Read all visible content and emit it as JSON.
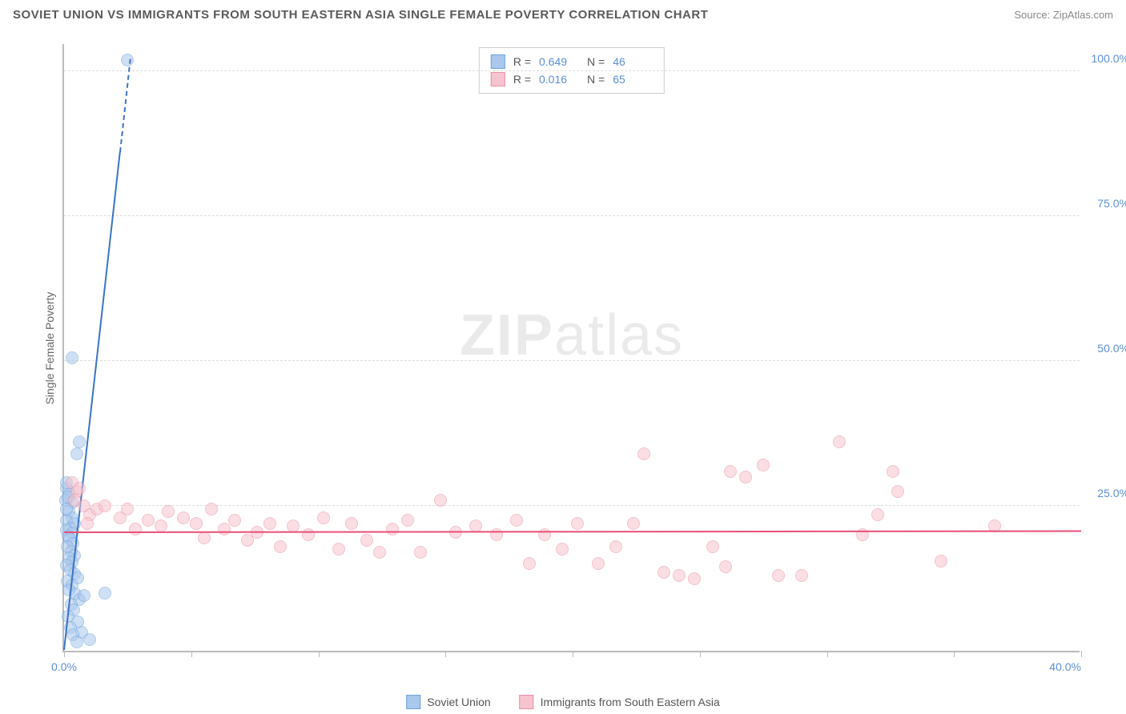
{
  "title": "SOVIET UNION VS IMMIGRANTS FROM SOUTH EASTERN ASIA SINGLE FEMALE POVERTY CORRELATION CHART",
  "source": "Source: ZipAtlas.com",
  "y_axis_label": "Single Female Poverty",
  "watermark_a": "ZIP",
  "watermark_b": "atlas",
  "chart": {
    "type": "scatter",
    "xlim": [
      0,
      40
    ],
    "ylim": [
      0,
      105
    ],
    "x_ticks": [
      0,
      5,
      10,
      15,
      20,
      25,
      30,
      35,
      40
    ],
    "x_tick_labels": {
      "0": "0.0%",
      "40": "40.0%"
    },
    "y_ticks": [
      25,
      50,
      75,
      100
    ],
    "y_tick_labels": {
      "25": "25.0%",
      "50": "50.0%",
      "75": "75.0%",
      "100": "100.0%"
    },
    "background_color": "#ffffff",
    "grid_color": "#dddddd",
    "axis_color": "#bbbbbb",
    "tick_label_color": "#5b8fd6",
    "marker_radius": 8,
    "marker_opacity": 0.55,
    "series": [
      {
        "name": "Soviet Union",
        "color_fill": "#a9c8ec",
        "color_stroke": "#6fa3de",
        "trend_color": "#3b74c4",
        "R": "0.649",
        "N": "46",
        "trend": {
          "x1": 0,
          "y1": 0,
          "x2": 2.2,
          "y2": 86,
          "dash_to_x": 2.6,
          "dash_to_y": 102
        },
        "points": [
          [
            2.5,
            102
          ],
          [
            0.3,
            50.5
          ],
          [
            0.6,
            36
          ],
          [
            0.5,
            34
          ],
          [
            0.1,
            28
          ],
          [
            0.2,
            27
          ],
          [
            0.3,
            25.5
          ],
          [
            0.2,
            24
          ],
          [
            0.3,
            23
          ],
          [
            0.1,
            22.5
          ],
          [
            0.4,
            22
          ],
          [
            0.25,
            21.2
          ],
          [
            0.1,
            20.8
          ],
          [
            0.3,
            20.3
          ],
          [
            0.15,
            19.8
          ],
          [
            0.22,
            19.3
          ],
          [
            0.35,
            18.5
          ],
          [
            0.12,
            18
          ],
          [
            0.28,
            17.2
          ],
          [
            0.42,
            16.5
          ],
          [
            0.18,
            16
          ],
          [
            0.32,
            15.4
          ],
          [
            0.09,
            14.8
          ],
          [
            0.26,
            14
          ],
          [
            0.4,
            13.3
          ],
          [
            0.55,
            12.6
          ],
          [
            0.14,
            12
          ],
          [
            0.3,
            11.3
          ],
          [
            0.2,
            10.5
          ],
          [
            0.45,
            9.8
          ],
          [
            1.6,
            10
          ],
          [
            0.6,
            8.8
          ],
          [
            0.28,
            8
          ],
          [
            0.38,
            7
          ],
          [
            0.16,
            6
          ],
          [
            0.52,
            5
          ],
          [
            0.24,
            4
          ],
          [
            0.7,
            3.2
          ],
          [
            0.35,
            2.8
          ],
          [
            1.0,
            2
          ],
          [
            0.5,
            1.5
          ],
          [
            0.1,
            29
          ],
          [
            0.05,
            26
          ],
          [
            0.15,
            26.5
          ],
          [
            0.08,
            24.5
          ],
          [
            0.8,
            9.5
          ]
        ]
      },
      {
        "name": "Immigrants from South Eastern Asia",
        "color_fill": "#f6c4cf",
        "color_stroke": "#eb8fa3",
        "trend_color": "#e94e77",
        "R": "0.016",
        "N": "65",
        "trend": {
          "x1": 0,
          "y1": 20.3,
          "x2": 40,
          "y2": 20.5
        },
        "points": [
          [
            0.3,
            29
          ],
          [
            0.5,
            27.5
          ],
          [
            0.4,
            26
          ],
          [
            0.6,
            28
          ],
          [
            0.8,
            25
          ],
          [
            1.0,
            23.5
          ],
          [
            1.3,
            24.5
          ],
          [
            0.9,
            22
          ],
          [
            1.6,
            25
          ],
          [
            2.2,
            23
          ],
          [
            2.8,
            21
          ],
          [
            2.5,
            24.5
          ],
          [
            3.3,
            22.5
          ],
          [
            3.8,
            21.5
          ],
          [
            4.1,
            24
          ],
          [
            4.7,
            23
          ],
          [
            5.2,
            22
          ],
          [
            5.5,
            19.5
          ],
          [
            5.8,
            24.5
          ],
          [
            6.3,
            21
          ],
          [
            6.7,
            22.5
          ],
          [
            7.2,
            19
          ],
          [
            7.6,
            20.5
          ],
          [
            8.1,
            22
          ],
          [
            8.5,
            18
          ],
          [
            9.0,
            21.5
          ],
          [
            9.6,
            20
          ],
          [
            10.2,
            23
          ],
          [
            10.8,
            17.5
          ],
          [
            11.3,
            22
          ],
          [
            11.9,
            19
          ],
          [
            12.4,
            17
          ],
          [
            12.9,
            21
          ],
          [
            13.5,
            22.5
          ],
          [
            14.0,
            17
          ],
          [
            14.8,
            26
          ],
          [
            15.4,
            20.5
          ],
          [
            16.2,
            21.5
          ],
          [
            17.0,
            20
          ],
          [
            17.8,
            22.5
          ],
          [
            18.3,
            15
          ],
          [
            18.9,
            20
          ],
          [
            19.6,
            17.5
          ],
          [
            20.2,
            22
          ],
          [
            21.0,
            15
          ],
          [
            21.7,
            18
          ],
          [
            22.4,
            22
          ],
          [
            22.8,
            34
          ],
          [
            23.6,
            13.5
          ],
          [
            24.2,
            13
          ],
          [
            24.8,
            12.5
          ],
          [
            25.5,
            18
          ],
          [
            26.0,
            14.5
          ],
          [
            26.2,
            31
          ],
          [
            26.8,
            30
          ],
          [
            27.5,
            32
          ],
          [
            28.1,
            13
          ],
          [
            29.0,
            13
          ],
          [
            30.5,
            36
          ],
          [
            31.4,
            20
          ],
          [
            32.0,
            23.5
          ],
          [
            32.6,
            31
          ],
          [
            32.8,
            27.5
          ],
          [
            34.5,
            15.5
          ],
          [
            36.6,
            21.5
          ]
        ]
      }
    ]
  },
  "stats_labels": {
    "R": "R =",
    "N": "N ="
  },
  "legend": {
    "series1": "Soviet Union",
    "series2": "Immigrants from South Eastern Asia"
  }
}
